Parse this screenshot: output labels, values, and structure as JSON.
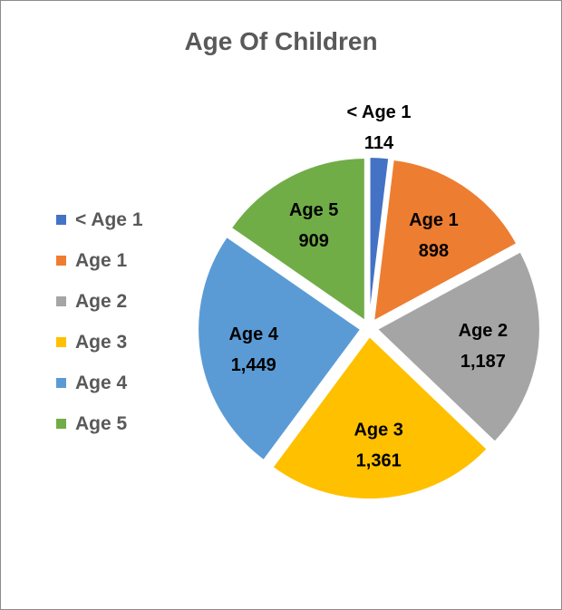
{
  "chart_data": {
    "type": "pie",
    "title": "Age Of Children",
    "categories": [
      "< Age 1",
      "Age 1",
      "Age 2",
      "Age 3",
      "Age 4",
      "Age 5"
    ],
    "values": [
      114,
      898,
      1187,
      1361,
      1449,
      909
    ],
    "value_labels": [
      "114",
      "898",
      "1,187",
      "1,361",
      "1,449",
      "909"
    ],
    "colors": [
      "#4472c4",
      "#ed7d31",
      "#a5a5a5",
      "#ffc000",
      "#5b9bd5",
      "#70ad47"
    ],
    "legend_position": "left",
    "exploded": true
  }
}
